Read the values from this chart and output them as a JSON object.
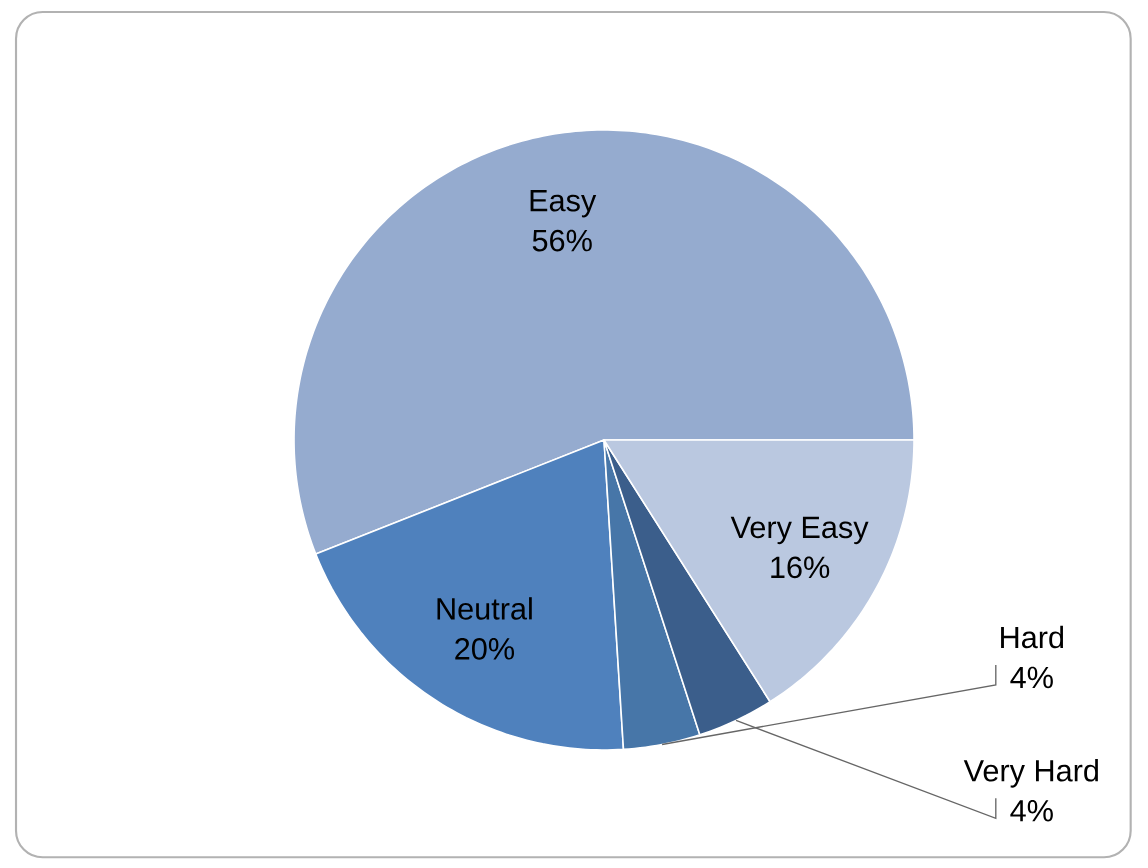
{
  "chart_data": {
    "type": "pie",
    "categories": [
      "Easy",
      "Neutral",
      "Hard",
      "Very Hard",
      "Very Easy"
    ],
    "values": [
      56,
      20,
      4,
      4,
      16
    ],
    "colors": [
      "#95abcf",
      "#4f81bd",
      "#4776a8",
      "#3b5e8b",
      "#bac8e0"
    ],
    "value_labels": [
      "56%",
      "20%",
      "4%",
      "4%",
      "16%"
    ]
  }
}
